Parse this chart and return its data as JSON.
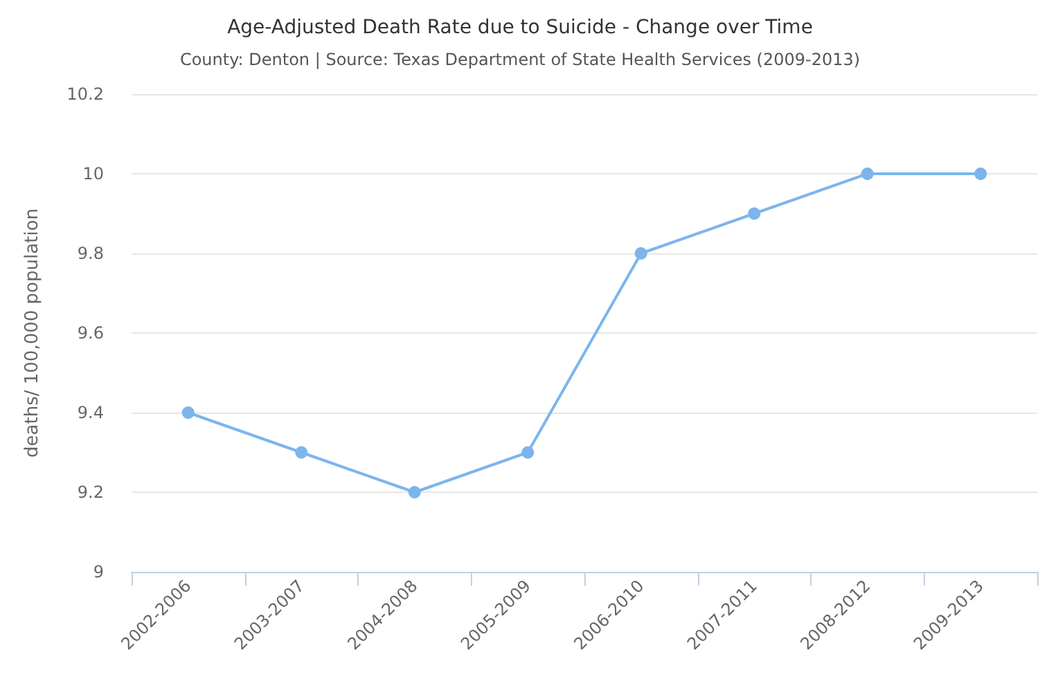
{
  "chart_data": {
    "type": "line",
    "title": "Age-Adjusted Death Rate due to Suicide - Change over Time",
    "subtitle": "County: Denton | Source: Texas Department of State Health Services (2009-2013)",
    "ylabel": "deaths/ 100,000 population",
    "categories": [
      "2002-2006",
      "2003-2007",
      "2004-2008",
      "2005-2009",
      "2006-2010",
      "2007-2011",
      "2008-2012",
      "2009-2013"
    ],
    "values": [
      9.4,
      9.3,
      9.2,
      9.3,
      9.8,
      9.9,
      10,
      10
    ],
    "color": "#7cb5ec",
    "marker": "circle",
    "line_style": "solid",
    "ylim": [
      9,
      10.2
    ],
    "yticks": [
      9,
      9.2,
      9.4,
      9.6,
      9.8,
      10,
      10.2
    ],
    "grid": "y"
  }
}
